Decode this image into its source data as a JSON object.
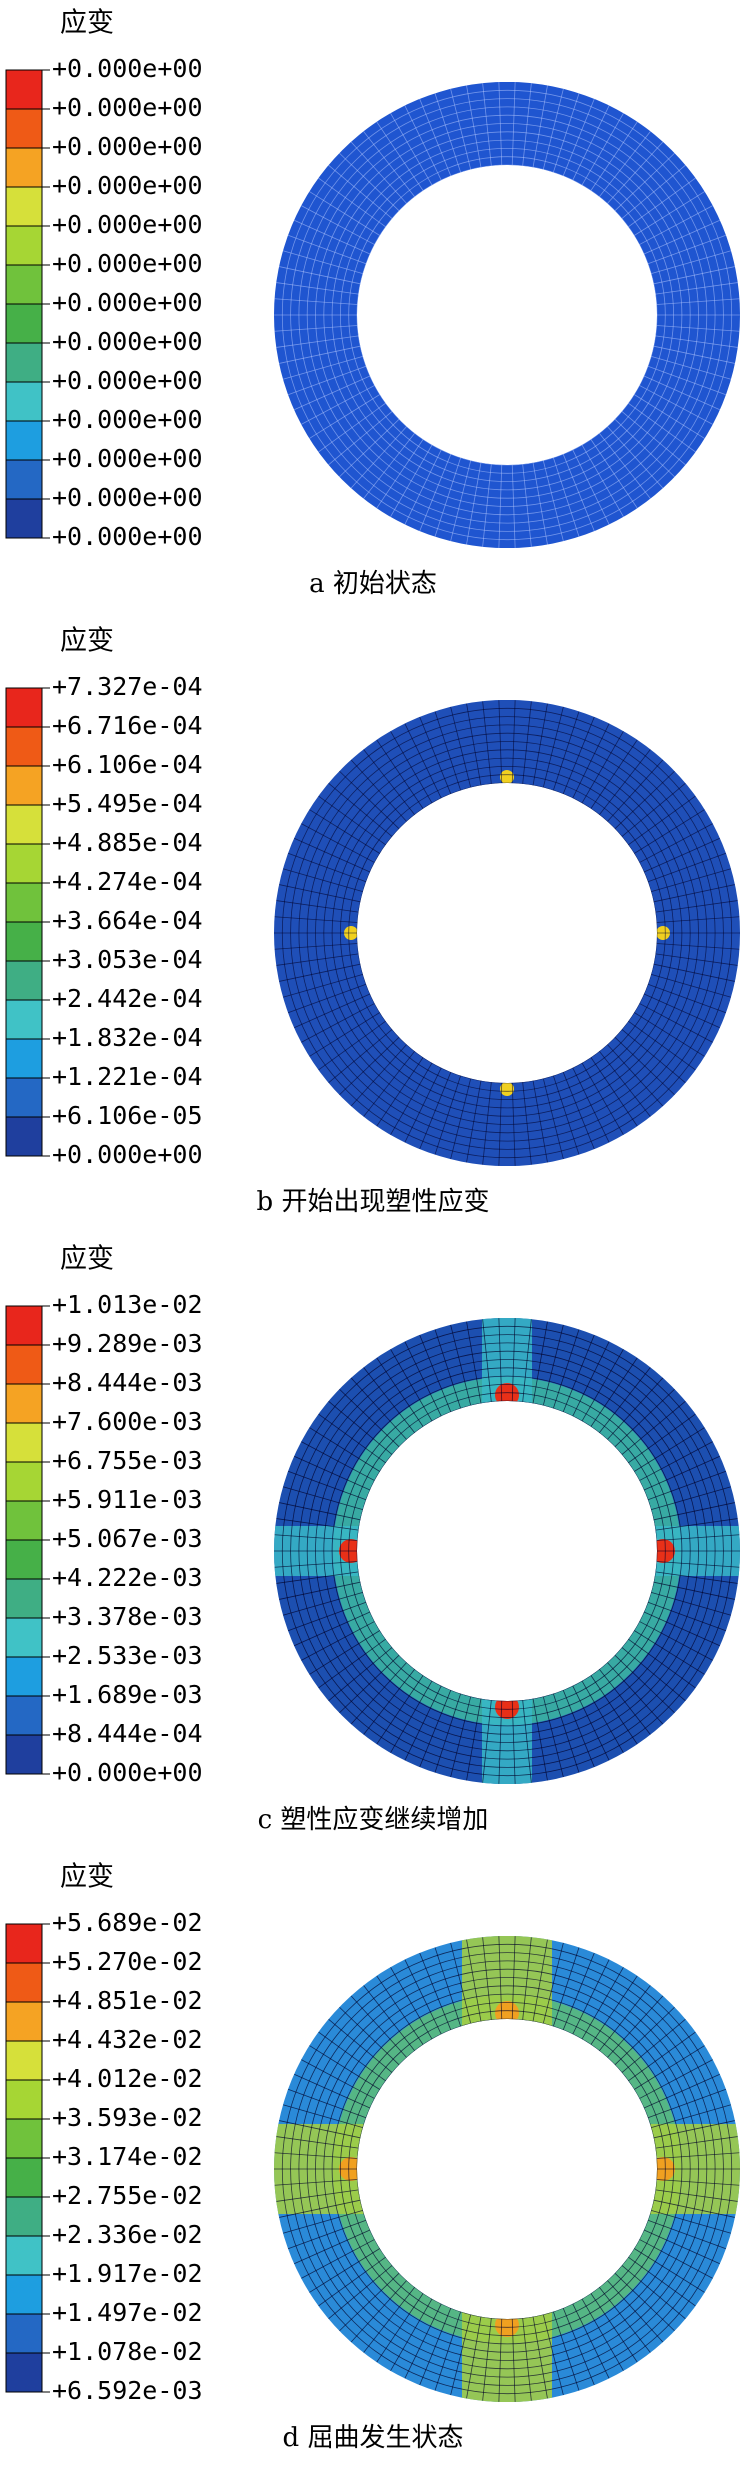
{
  "panels": [
    {
      "legend_title": "应变",
      "levels": [
        "+0.000e+00",
        "+0.000e+00",
        "+0.000e+00",
        "+0.000e+00",
        "+0.000e+00",
        "+0.000e+00",
        "+0.000e+00",
        "+0.000e+00",
        "+0.000e+00",
        "+0.000e+00",
        "+0.000e+00",
        "+0.000e+00",
        "+0.000e+00"
      ],
      "caption": "a 初始状态"
    },
    {
      "legend_title": "应变",
      "levels": [
        "+7.327e-04",
        "+6.716e-04",
        "+6.106e-04",
        "+5.495e-04",
        "+4.885e-04",
        "+4.274e-04",
        "+3.664e-04",
        "+3.053e-04",
        "+2.442e-04",
        "+1.832e-04",
        "+1.221e-04",
        "+6.106e-05",
        "+0.000e+00"
      ],
      "caption": "b 开始出现塑性应变"
    },
    {
      "legend_title": "应变",
      "levels": [
        "+1.013e-02",
        "+9.289e-03",
        "+8.444e-03",
        "+7.600e-03",
        "+6.755e-03",
        "+5.911e-03",
        "+5.067e-03",
        "+4.222e-03",
        "+3.378e-03",
        "+2.533e-03",
        "+1.689e-03",
        "+8.444e-04",
        "+0.000e+00"
      ],
      "caption": "c 塑性应变继续增加"
    },
    {
      "legend_title": "应变",
      "levels": [
        "+5.689e-02",
        "+5.270e-02",
        "+4.851e-02",
        "+4.432e-02",
        "+4.012e-02",
        "+3.593e-02",
        "+3.174e-02",
        "+2.755e-02",
        "+2.336e-02",
        "+1.917e-02",
        "+1.497e-02",
        "+1.078e-02",
        "+6.592e-03"
      ],
      "caption": "d 屈曲发生状态"
    }
  ]
}
